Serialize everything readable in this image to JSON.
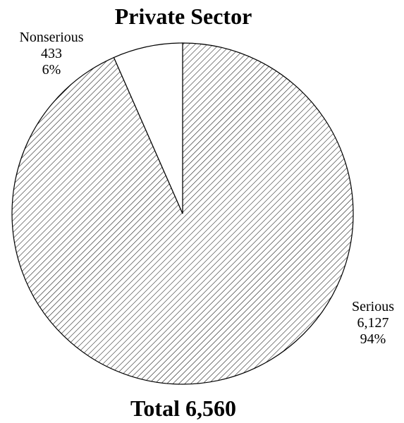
{
  "chart_data": {
    "type": "pie",
    "title": "Private Sector",
    "total_label": "Total 6,560",
    "total": 6560,
    "slices": [
      {
        "name": "Serious",
        "value": 6127,
        "value_label": "6,127",
        "percent_label": "94%",
        "fill": "hatched"
      },
      {
        "name": "Nonserious",
        "value": 433,
        "value_label": "433",
        "percent_label": "6%",
        "fill": "white"
      }
    ]
  }
}
